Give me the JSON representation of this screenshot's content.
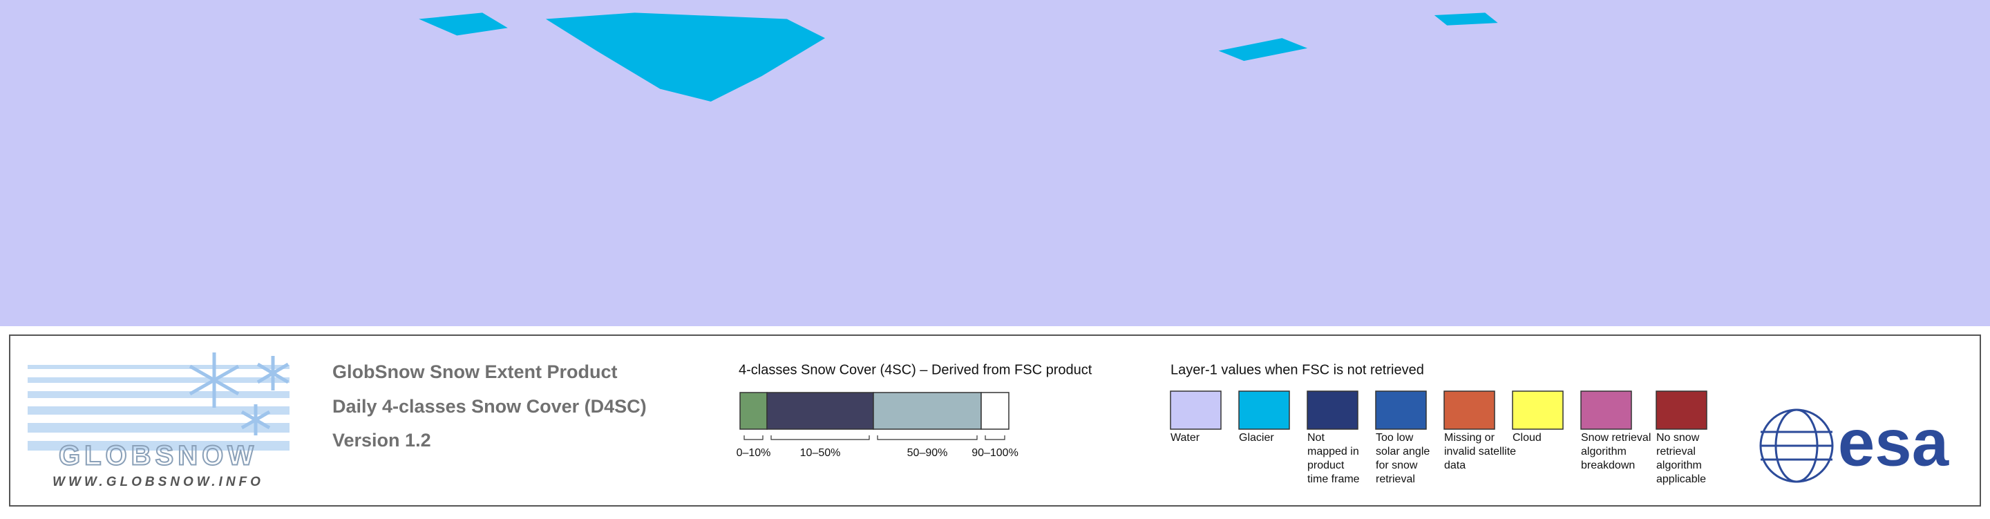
{
  "header": {
    "title": "GlobSnow Snow Extent Product",
    "subtitle": "Daily 4-classes Snow Cover (D4SC)",
    "version": "Version 1.2"
  },
  "logo": {
    "name": "GLOBSNOW",
    "url": "WWW.GLOBSNOW.INFO",
    "agency": "esa"
  },
  "snow_cover_legend": {
    "title": "4-classes Snow Cover (4SC) – Derived from FSC product",
    "classes": [
      {
        "label": "0–10%",
        "color": "#6e9a68"
      },
      {
        "label": "10–50%",
        "color": "#404060"
      },
      {
        "label": "50–90%",
        "color": "#a0b8c0"
      },
      {
        "label": "90–100%",
        "color": "#ffffff"
      }
    ]
  },
  "layer1_legend": {
    "title": "Layer-1 values when FSC is not retrieved",
    "items": [
      {
        "label": [
          "Water"
        ],
        "color": "#c8c8f8"
      },
      {
        "label": [
          "Glacier"
        ],
        "color": "#00b4e6"
      },
      {
        "label": [
          "Not",
          "mapped in",
          "product",
          "time frame"
        ],
        "color": "#283a78"
      },
      {
        "label": [
          "Too low",
          "solar angle",
          "for snow",
          "retrieval"
        ],
        "color": "#2a5caa"
      },
      {
        "label": [
          "Missing or",
          "invalid satellite",
          "data"
        ],
        "color": "#d0603e"
      },
      {
        "label": [
          "Cloud"
        ],
        "color": "#ffff5a"
      },
      {
        "label": [
          "Snow retrieval",
          "algorithm",
          "breakdown"
        ],
        "color": "#c0609c"
      },
      {
        "label": [
          "No snow",
          "retrieval",
          "algorithm",
          "applicable"
        ],
        "color": "#9c2c30"
      }
    ]
  }
}
